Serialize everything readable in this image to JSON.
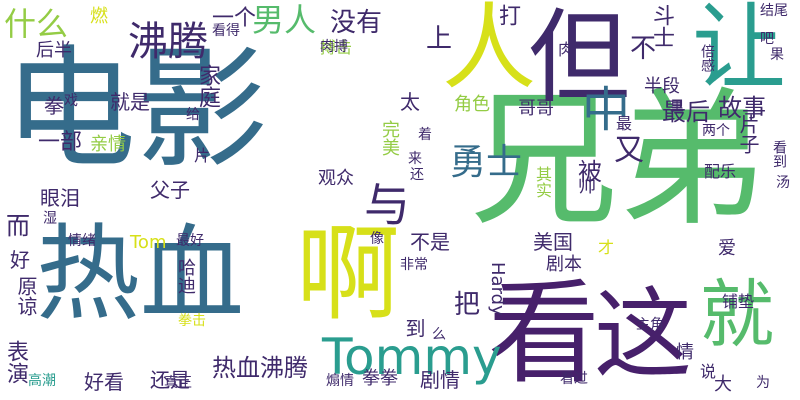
{
  "palette": {
    "navy": "#3f2a6b",
    "blue": "#2f6e8e",
    "steel": "#356c8b",
    "teal": "#2a9d8f",
    "green": "#56bb6c",
    "lime": "#94cc45",
    "yellow": "#d7e019",
    "purple": "#47206b"
  },
  "words": [
    "电影",
    "兄弟",
    "热血",
    "看",
    "但",
    "人",
    "让",
    "这",
    "啊",
    "就",
    "Tommy",
    "勇士",
    "沸腾",
    "男人",
    "与",
    "中",
    "没有",
    "什么",
    "上",
    "又",
    "斗士",
    "最后",
    "故事",
    "被",
    "一个",
    "家庭",
    "一部",
    "就是",
    "父子",
    "眼泪",
    "热血沸腾",
    "美国",
    "剧本",
    "把",
    "Hardy",
    "还是",
    "好看",
    "Tom",
    "不是",
    "剧情",
    "片子",
    "半段",
    "打",
    "后半",
    "燃",
    "表演",
    "原谅",
    "拳",
    "戏",
    "角色",
    "哥哥",
    "完美",
    "亲情",
    "来",
    "着",
    "不",
    "太",
    "肉",
    "搏击",
    "看得",
    "结尾",
    "果",
    "吧",
    "倍感",
    "看到",
    "汤",
    "两个",
    "最",
    "里",
    "给",
    "片",
    "观众",
    "还",
    "像",
    "配乐",
    "其实",
    "最好",
    "情绪",
    "哈迪",
    "非常",
    "帅",
    "才",
    "爱",
    "铺垫",
    "拳击",
    "主角",
    "到",
    "么",
    "情",
    "说",
    "大",
    "为",
    "看过",
    "煽情",
    "拳拳",
    "真正",
    "高潮",
    "湿",
    "好",
    "而",
    "肉搏"
  ]
}
